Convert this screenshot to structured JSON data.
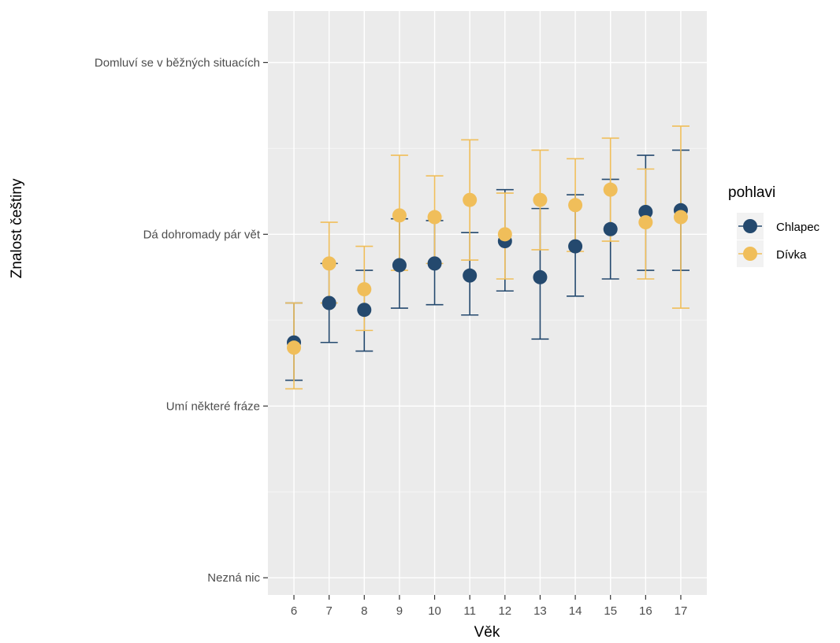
{
  "chart_data": {
    "type": "scatter",
    "title": "",
    "xlabel": "Věk",
    "ylabel": "Znalost češtiny",
    "x": [
      6,
      7,
      8,
      9,
      10,
      11,
      12,
      13,
      14,
      15,
      16,
      17
    ],
    "y_levels": [
      "Nezná nic",
      "Umí některé fráze",
      "Dá dohromady pár vět",
      "Domluví se v běžných situacích"
    ],
    "y_level_values": [
      1,
      2,
      3,
      4
    ],
    "ylim": [
      0.9,
      4.3
    ],
    "grid": true,
    "legend": {
      "title": "pohlavi",
      "position": "right"
    },
    "series": [
      {
        "name": "Chlapec",
        "color": "#24496e",
        "values": [
          2.37,
          2.6,
          2.56,
          2.82,
          2.83,
          2.76,
          2.96,
          2.75,
          2.93,
          3.03,
          3.13,
          3.14
        ],
        "lower": [
          2.15,
          2.37,
          2.32,
          2.57,
          2.59,
          2.53,
          2.67,
          2.39,
          2.64,
          2.74,
          2.79,
          2.79
        ],
        "upper": [
          2.6,
          2.83,
          2.79,
          3.09,
          3.08,
          3.01,
          3.26,
          3.15,
          3.23,
          3.32,
          3.46,
          3.49
        ]
      },
      {
        "name": "Dívka",
        "color": "#f0be5a",
        "values": [
          2.34,
          2.83,
          2.68,
          3.11,
          3.1,
          3.2,
          3.0,
          3.2,
          3.17,
          3.26,
          3.07,
          3.1
        ],
        "lower": [
          2.1,
          2.6,
          2.44,
          2.79,
          2.83,
          2.85,
          2.74,
          2.91,
          2.9,
          2.96,
          2.74,
          2.57
        ],
        "upper": [
          2.6,
          3.07,
          2.93,
          3.46,
          3.34,
          3.55,
          3.24,
          3.49,
          3.44,
          3.56,
          3.38,
          3.63
        ]
      }
    ]
  }
}
